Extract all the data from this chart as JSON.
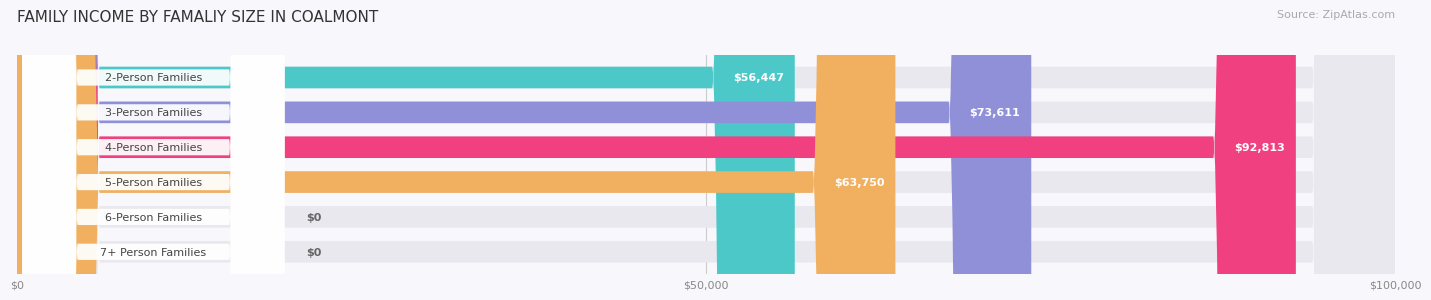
{
  "title": "FAMILY INCOME BY FAMALIY SIZE IN COALMONT",
  "source": "Source: ZipAtlas.com",
  "categories": [
    "2-Person Families",
    "3-Person Families",
    "4-Person Families",
    "5-Person Families",
    "6-Person Families",
    "7+ Person Families"
  ],
  "values": [
    56447,
    73611,
    92813,
    63750,
    0,
    0
  ],
  "labels": [
    "$56,447",
    "$73,611",
    "$92,813",
    "$63,750",
    "$0",
    "$0"
  ],
  "bar_colors": [
    "#4dc8c8",
    "#9090d8",
    "#f04080",
    "#f0b060",
    "#f0a0a0",
    "#a0c0e8"
  ],
  "bar_bg_color": "#e8e8ee",
  "xlim": [
    0,
    100000
  ],
  "xticks": [
    0,
    50000,
    100000
  ],
  "xtick_labels": [
    "$0",
    "$50,000",
    "$100,000"
  ],
  "title_fontsize": 11,
  "source_fontsize": 8,
  "label_fontsize": 8,
  "category_fontsize": 8,
  "bg_color": "#f8f8fc",
  "bar_height": 0.62,
  "label_color_inside": "#ffffff",
  "label_color_outside": "#666666"
}
